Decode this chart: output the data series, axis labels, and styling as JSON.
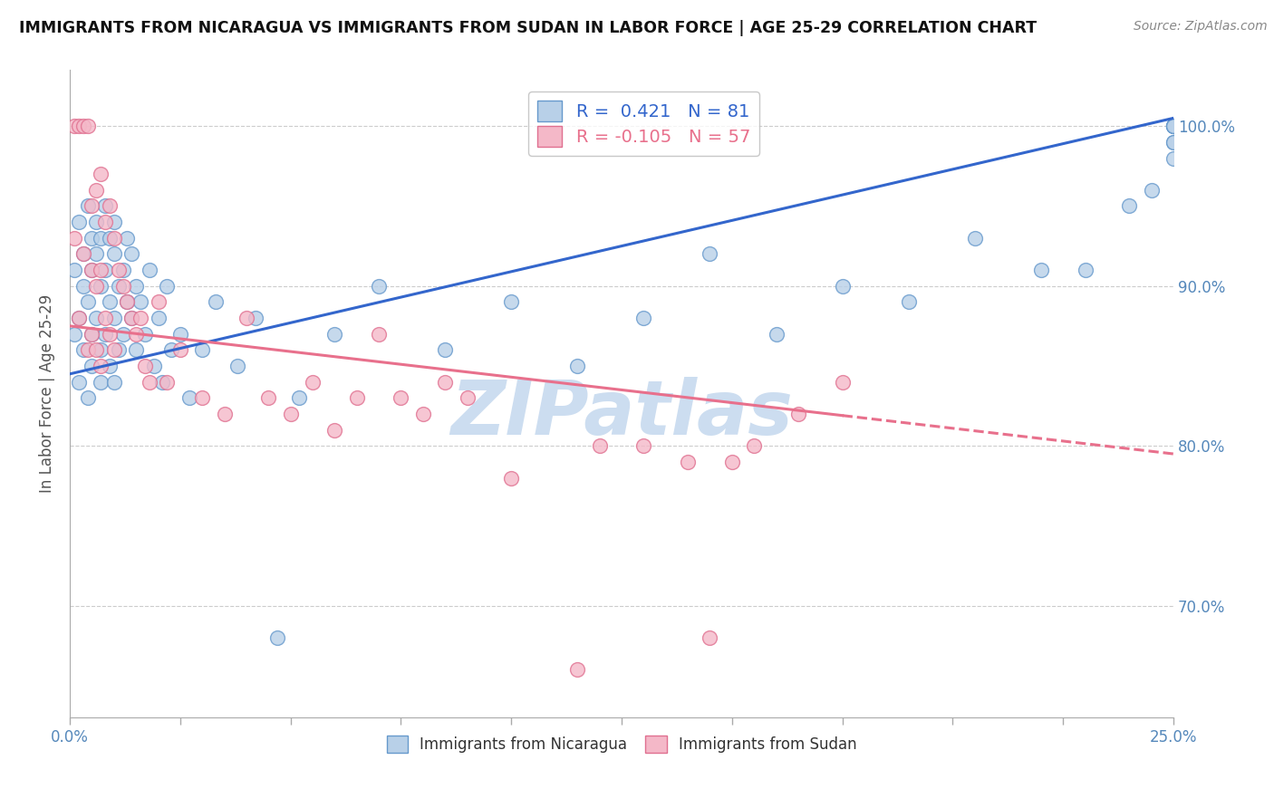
{
  "title": "IMMIGRANTS FROM NICARAGUA VS IMMIGRANTS FROM SUDAN IN LABOR FORCE | AGE 25-29 CORRELATION CHART",
  "source": "Source: ZipAtlas.com",
  "ylabel": "In Labor Force | Age 25-29",
  "xlim": [
    0.0,
    25.0
  ],
  "ylim": [
    63.0,
    103.5
  ],
  "x_ticks": [
    0.0,
    2.5,
    5.0,
    7.5,
    10.0,
    12.5,
    15.0,
    17.5,
    20.0,
    22.5,
    25.0
  ],
  "y_ticks": [
    70.0,
    80.0,
    90.0,
    100.0
  ],
  "nicaragua_R": 0.421,
  "nicaragua_N": 81,
  "sudan_R": -0.105,
  "sudan_N": 57,
  "nicaragua_color": "#b8d0e8",
  "nicaragua_edge": "#6699cc",
  "sudan_color": "#f4b8c8",
  "sudan_edge": "#e07090",
  "nicaragua_line_color": "#3366cc",
  "sudan_line_color": "#e8708c",
  "watermark": "ZIPatlas",
  "watermark_color": "#ccddf0",
  "legend_label_nicaragua": "Immigrants from Nicaragua",
  "legend_label_sudan": "Immigrants from Sudan",
  "nicaragua_trend_x0": 0.0,
  "nicaragua_trend_y0": 84.5,
  "nicaragua_trend_x1": 25.0,
  "nicaragua_trend_y1": 100.5,
  "sudan_trend_x0": 0.0,
  "sudan_trend_y0": 87.5,
  "sudan_trend_x1": 25.0,
  "sudan_trend_y1": 79.5,
  "sudan_solid_end": 17.5,
  "nicaragua_x": [
    0.1,
    0.1,
    0.2,
    0.2,
    0.2,
    0.3,
    0.3,
    0.3,
    0.4,
    0.4,
    0.4,
    0.5,
    0.5,
    0.5,
    0.5,
    0.6,
    0.6,
    0.6,
    0.7,
    0.7,
    0.7,
    0.7,
    0.8,
    0.8,
    0.8,
    0.9,
    0.9,
    0.9,
    1.0,
    1.0,
    1.0,
    1.0,
    1.1,
    1.1,
    1.2,
    1.2,
    1.3,
    1.3,
    1.4,
    1.4,
    1.5,
    1.5,
    1.6,
    1.7,
    1.8,
    1.9,
    2.0,
    2.1,
    2.2,
    2.3,
    2.5,
    2.7,
    3.0,
    3.3,
    3.8,
    4.2,
    4.7,
    5.2,
    6.0,
    7.0,
    8.5,
    10.0,
    11.5,
    13.0,
    14.5,
    16.0,
    17.5,
    19.0,
    20.5,
    22.0,
    23.0,
    24.0,
    24.5,
    25.0,
    25.0,
    25.0,
    25.0,
    25.0,
    25.0,
    25.0,
    25.0
  ],
  "nicaragua_y": [
    87.0,
    91.0,
    88.0,
    94.0,
    84.0,
    90.0,
    86.0,
    92.0,
    89.0,
    95.0,
    83.0,
    91.0,
    87.0,
    93.0,
    85.0,
    92.0,
    88.0,
    94.0,
    90.0,
    86.0,
    93.0,
    84.0,
    91.0,
    87.0,
    95.0,
    93.0,
    89.0,
    85.0,
    92.0,
    88.0,
    94.0,
    84.0,
    90.0,
    86.0,
    91.0,
    87.0,
    93.0,
    89.0,
    88.0,
    92.0,
    90.0,
    86.0,
    89.0,
    87.0,
    91.0,
    85.0,
    88.0,
    84.0,
    90.0,
    86.0,
    87.0,
    83.0,
    86.0,
    89.0,
    85.0,
    88.0,
    68.0,
    83.0,
    87.0,
    90.0,
    86.0,
    89.0,
    85.0,
    88.0,
    92.0,
    87.0,
    90.0,
    89.0,
    93.0,
    91.0,
    91.0,
    95.0,
    96.0,
    100.0,
    98.0,
    99.0,
    99.0,
    100.0,
    100.0,
    100.0,
    100.0
  ],
  "sudan_x": [
    0.1,
    0.1,
    0.2,
    0.2,
    0.3,
    0.3,
    0.4,
    0.4,
    0.5,
    0.5,
    0.5,
    0.6,
    0.6,
    0.6,
    0.7,
    0.7,
    0.7,
    0.8,
    0.8,
    0.9,
    0.9,
    1.0,
    1.0,
    1.1,
    1.2,
    1.3,
    1.4,
    1.5,
    1.6,
    1.7,
    1.8,
    2.0,
    2.2,
    2.5,
    3.0,
    3.5,
    4.0,
    4.5,
    5.0,
    5.5,
    6.0,
    6.5,
    7.0,
    7.5,
    8.0,
    8.5,
    9.0,
    10.0,
    11.5,
    12.0,
    13.0,
    14.0,
    14.5,
    15.0,
    15.5,
    16.5,
    17.5
  ],
  "sudan_y": [
    100.0,
    93.0,
    100.0,
    88.0,
    100.0,
    92.0,
    100.0,
    86.0,
    95.0,
    91.0,
    87.0,
    96.0,
    90.0,
    86.0,
    97.0,
    91.0,
    85.0,
    94.0,
    88.0,
    95.0,
    87.0,
    93.0,
    86.0,
    91.0,
    90.0,
    89.0,
    88.0,
    87.0,
    88.0,
    85.0,
    84.0,
    89.0,
    84.0,
    86.0,
    83.0,
    82.0,
    88.0,
    83.0,
    82.0,
    84.0,
    81.0,
    83.0,
    87.0,
    83.0,
    82.0,
    84.0,
    83.0,
    78.0,
    66.0,
    80.0,
    80.0,
    79.0,
    68.0,
    79.0,
    80.0,
    82.0,
    84.0
  ]
}
